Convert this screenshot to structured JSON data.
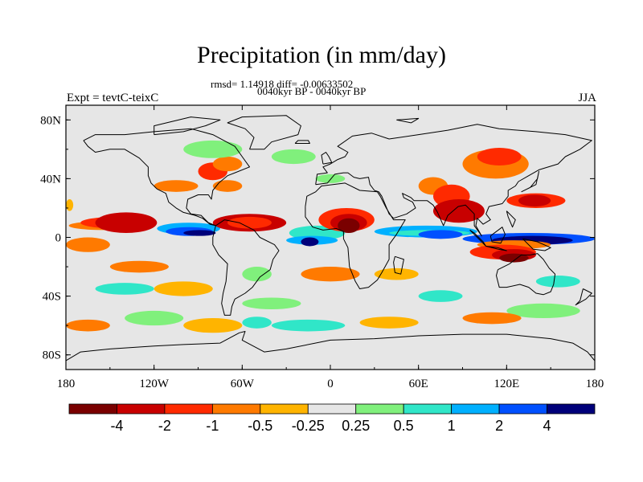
{
  "title": "Precipitation (in mm/day)",
  "stats_line": "rmsd= 1.14918 diff= -0.00633502",
  "period_line": "0040kyr BP - 0040kyr BP",
  "left_string": "Expt = tevtC-teixC",
  "right_string": "JJA",
  "chart_data": {
    "type": "heatmap",
    "projection": "cylindrical equidistant",
    "xlim": [
      -180,
      180
    ],
    "ylim": [
      -90,
      90
    ],
    "x_ticks": [
      {
        "value": -180,
        "label": "180"
      },
      {
        "value": -120,
        "label": "120W"
      },
      {
        "value": -60,
        "label": "60W"
      },
      {
        "value": 0,
        "label": "0"
      },
      {
        "value": 60,
        "label": "60E"
      },
      {
        "value": 120,
        "label": "120E"
      },
      {
        "value": 180,
        "label": "180"
      }
    ],
    "y_ticks": [
      {
        "value": 80,
        "label": "80N"
      },
      {
        "value": 40,
        "label": "40N"
      },
      {
        "value": 0,
        "label": "0"
      },
      {
        "value": -40,
        "label": "40S"
      },
      {
        "value": -80,
        "label": "80S"
      }
    ],
    "levels": [
      -4,
      -2,
      -1,
      -0.5,
      -0.25,
      0.25,
      0.5,
      1,
      2,
      4
    ],
    "level_labels": [
      "-4",
      "-2",
      "-1",
      "-0.5",
      "-0.25",
      "0.25",
      "0.5",
      "1",
      "2",
      "4"
    ],
    "colors": [
      "#7a0000",
      "#c80000",
      "#ff2a00",
      "#ff7a00",
      "#ffb400",
      "#e6e6e6",
      "#80f07c",
      "#30e6c8",
      "#00b0ff",
      "#0050ff",
      "#00007a"
    ],
    "background_color": "#e6e6e6"
  }
}
